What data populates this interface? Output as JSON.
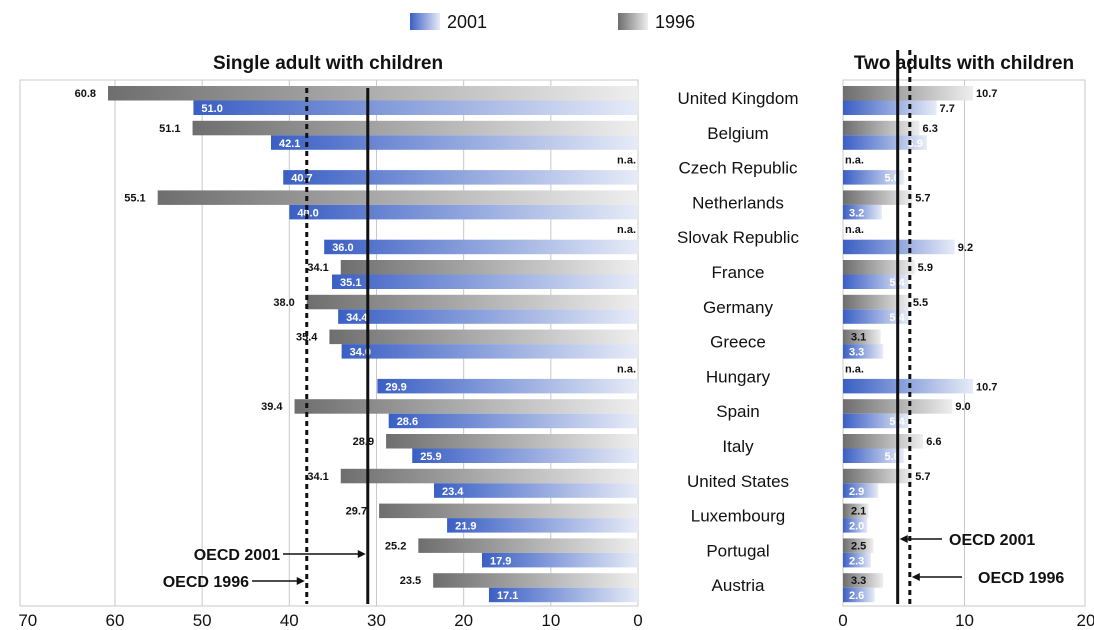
{
  "legend": [
    {
      "name": "2001",
      "color": "#3a5fc4"
    },
    {
      "name": "1996",
      "color": "#777777"
    }
  ],
  "countries": [
    "United Kingdom",
    "Belgium",
    "Czech Republic",
    "Netherlands",
    "Slovak Republic",
    "France",
    "Germany",
    "Greece",
    "Hungary",
    "Spain",
    "Italy",
    "United States",
    "Luxembourg",
    "Portugal",
    "Austria"
  ],
  "chart_data": [
    {
      "type": "bar",
      "orientation": "horizontal",
      "title": "Single adult with children",
      "xlim": [
        70,
        0
      ],
      "xticks": [
        70,
        60,
        50,
        40,
        30,
        20,
        10,
        0
      ],
      "grid": true,
      "categories": [
        "United Kingdom",
        "Belgium",
        "Czech Republic",
        "Netherlands",
        "Slovak Republic",
        "France",
        "Germany",
        "Greece",
        "Hungary",
        "Spain",
        "Italy",
        "United States",
        "Luxembourg",
        "Portugal",
        "Austria"
      ],
      "series": [
        {
          "name": "1996",
          "values": [
            60.8,
            51.1,
            null,
            55.1,
            null,
            34.1,
            38.0,
            35.4,
            null,
            39.4,
            28.9,
            34.1,
            29.7,
            25.2,
            23.5
          ],
          "labels": [
            "60.8",
            "51.1",
            "n.a.",
            "55.1",
            "n.a.",
            "34.1",
            "38.0",
            "35.4",
            "n.a.",
            "39.4",
            "28.9",
            "34.1",
            "29.7",
            "25.2",
            "23.5"
          ]
        },
        {
          "name": "2001",
          "values": [
            51.0,
            42.1,
            40.7,
            40.0,
            36.0,
            35.1,
            34.4,
            34.0,
            29.9,
            28.6,
            25.9,
            23.4,
            21.9,
            17.9,
            17.1
          ],
          "labels": [
            "51.0",
            "42.1",
            "40.7",
            "40.0",
            "36.0",
            "35.1",
            "34.4",
            "34.0",
            "29.9",
            "28.6",
            "25.9",
            "23.4",
            "21.9",
            "17.9",
            "17.1"
          ]
        }
      ],
      "reference_lines": [
        {
          "label": "OECD 2001",
          "value": 31,
          "style": "solid"
        },
        {
          "label": "OECD 1996",
          "value": 38,
          "style": "dashed"
        }
      ]
    },
    {
      "type": "bar",
      "orientation": "horizontal",
      "title": "Two adults with children",
      "xlim": [
        0,
        20
      ],
      "xticks": [
        0,
        10,
        20
      ],
      "grid": true,
      "categories": [
        "United Kingdom",
        "Belgium",
        "Czech Republic",
        "Netherlands",
        "Slovak Republic",
        "France",
        "Germany",
        "Greece",
        "Hungary",
        "Spain",
        "Italy",
        "United States",
        "Luxembourg",
        "Portugal",
        "Austria"
      ],
      "series": [
        {
          "name": "1996",
          "values": [
            10.7,
            6.3,
            null,
            5.7,
            null,
            5.9,
            5.5,
            3.1,
            null,
            9.0,
            6.6,
            5.7,
            2.1,
            2.5,
            3.3
          ],
          "labels": [
            "10.7",
            "6.3",
            "n.a.",
            "5.7",
            "n.a.",
            "5.9",
            "5.5",
            "3.1",
            "n.a.",
            "9.0",
            "6.6",
            "5.7",
            "2.1",
            "2.5",
            "3.3"
          ]
        },
        {
          "name": "2001",
          "values": [
            7.7,
            6.9,
            5.0,
            3.2,
            9.2,
            5.4,
            5.4,
            3.3,
            10.7,
            5.4,
            5.0,
            2.9,
            2.0,
            2.3,
            2.6
          ],
          "labels": [
            "7.7",
            "6.9",
            "5.0",
            "3.2",
            "9.2",
            "5.4",
            "5.4",
            "3.3",
            "10.7",
            "5.4",
            "5.0",
            "2.9",
            "2.0",
            "2.3",
            "2.6"
          ]
        }
      ],
      "reference_lines": [
        {
          "label": "OECD 2001",
          "value": 4.5,
          "style": "solid"
        },
        {
          "label": "OECD 1996",
          "value": 5.5,
          "style": "dashed"
        }
      ]
    }
  ]
}
